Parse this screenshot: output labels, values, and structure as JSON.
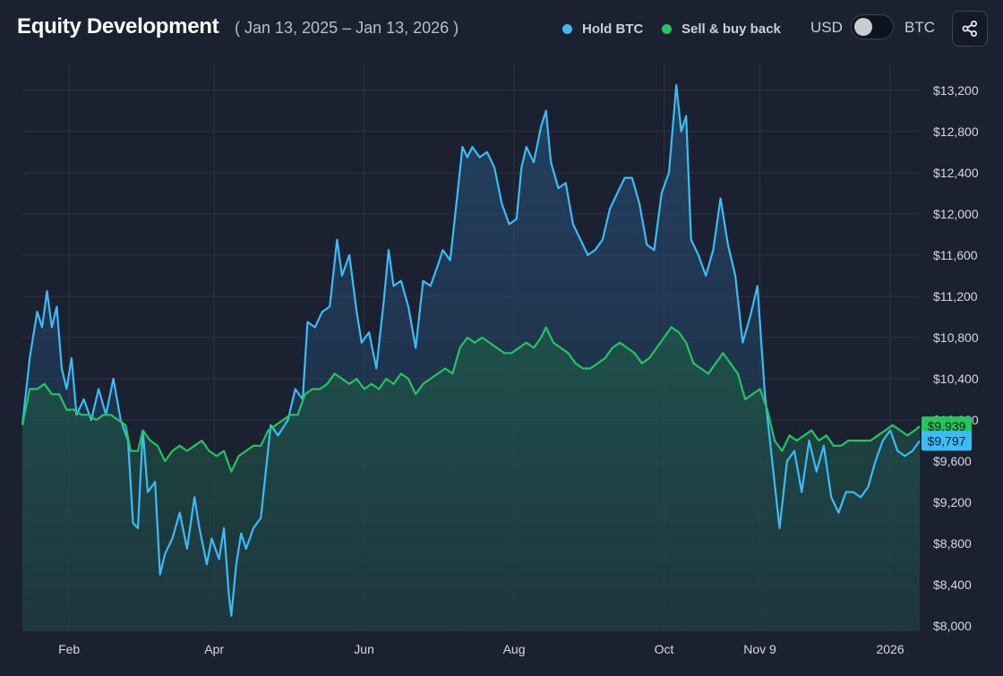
{
  "header": {
    "title": "Equity Development",
    "date_range": "( Jan 13, 2025 – Jan 13, 2026 )",
    "currency_left": "USD",
    "currency_right": "BTC"
  },
  "colors": {
    "hold": "#3bbcf5",
    "sell": "#22c55e",
    "background": "#1b2130",
    "grid": "#2b3344"
  },
  "icons": {
    "share": "share-icon"
  },
  "chart_data": {
    "type": "area",
    "title": "Equity Development",
    "x_range": [
      "2025-01-13",
      "2026-01-13"
    ],
    "ylim": [
      7950,
      13450
    ],
    "y_ticks": [
      8000,
      8400,
      8800,
      9200,
      9600,
      10000,
      10400,
      10800,
      11200,
      11600,
      12000,
      12400,
      12800,
      13200
    ],
    "y_tick_labels": [
      "$8,000",
      "$8,400",
      "$8,800",
      "$9,200",
      "$9,600",
      "$10,000",
      "$10,400",
      "$10,800",
      "$11,200",
      "$11,600",
      "$12,000",
      "$12,400",
      "$12,800",
      "$13,200"
    ],
    "x_ticks": [
      {
        "date": "2025-02-01",
        "label": "Feb"
      },
      {
        "date": "2025-04-01",
        "label": "Apr"
      },
      {
        "date": "2025-06-01",
        "label": "Jun"
      },
      {
        "date": "2025-08-01",
        "label": "Aug"
      },
      {
        "date": "2025-10-01",
        "label": "Oct"
      },
      {
        "date": "2025-11-09",
        "label": "Nov 9"
      },
      {
        "date": "2026-01-01",
        "label": "2026"
      }
    ],
    "grid": true,
    "legend": "top-right",
    "series": [
      {
        "name": "Hold BTC",
        "color": "#3bbcf5",
        "last_value_label": "$9,797",
        "points": [
          [
            "2025-01-13",
            9950
          ],
          [
            "2025-01-16",
            10600
          ],
          [
            "2025-01-19",
            11050
          ],
          [
            "2025-01-21",
            10900
          ],
          [
            "2025-01-23",
            11250
          ],
          [
            "2025-01-25",
            10900
          ],
          [
            "2025-01-27",
            11100
          ],
          [
            "2025-01-29",
            10500
          ],
          [
            "2025-01-31",
            10300
          ],
          [
            "2025-02-02",
            10600
          ],
          [
            "2025-02-04",
            10050
          ],
          [
            "2025-02-07",
            10200
          ],
          [
            "2025-02-10",
            10000
          ],
          [
            "2025-02-13",
            10300
          ],
          [
            "2025-02-16",
            10050
          ],
          [
            "2025-02-19",
            10400
          ],
          [
            "2025-02-22",
            10000
          ],
          [
            "2025-02-25",
            9800
          ],
          [
            "2025-02-27",
            9000
          ],
          [
            "2025-03-01",
            8950
          ],
          [
            "2025-03-03",
            9900
          ],
          [
            "2025-03-05",
            9300
          ],
          [
            "2025-03-08",
            9400
          ],
          [
            "2025-03-10",
            8500
          ],
          [
            "2025-03-12",
            8700
          ],
          [
            "2025-03-15",
            8850
          ],
          [
            "2025-03-18",
            9100
          ],
          [
            "2025-03-21",
            8750
          ],
          [
            "2025-03-24",
            9250
          ],
          [
            "2025-03-26",
            8950
          ],
          [
            "2025-03-29",
            8600
          ],
          [
            "2025-03-31",
            8850
          ],
          [
            "2025-04-03",
            8650
          ],
          [
            "2025-04-05",
            8950
          ],
          [
            "2025-04-07",
            8300
          ],
          [
            "2025-04-08",
            8100
          ],
          [
            "2025-04-10",
            8600
          ],
          [
            "2025-04-12",
            8900
          ],
          [
            "2025-04-14",
            8750
          ],
          [
            "2025-04-17",
            8950
          ],
          [
            "2025-04-20",
            9050
          ],
          [
            "2025-04-22",
            9500
          ],
          [
            "2025-04-24",
            9950
          ],
          [
            "2025-04-27",
            9850
          ],
          [
            "2025-05-01",
            10000
          ],
          [
            "2025-05-04",
            10300
          ],
          [
            "2025-05-07",
            10200
          ],
          [
            "2025-05-09",
            10950
          ],
          [
            "2025-05-12",
            10900
          ],
          [
            "2025-05-15",
            11050
          ],
          [
            "2025-05-18",
            11100
          ],
          [
            "2025-05-21",
            11750
          ],
          [
            "2025-05-23",
            11400
          ],
          [
            "2025-05-26",
            11600
          ],
          [
            "2025-05-29",
            11050
          ],
          [
            "2025-05-31",
            10750
          ],
          [
            "2025-06-03",
            10850
          ],
          [
            "2025-06-06",
            10500
          ],
          [
            "2025-06-09",
            11150
          ],
          [
            "2025-06-11",
            11650
          ],
          [
            "2025-06-13",
            11300
          ],
          [
            "2025-06-16",
            11350
          ],
          [
            "2025-06-19",
            11100
          ],
          [
            "2025-06-22",
            10700
          ],
          [
            "2025-06-25",
            11350
          ],
          [
            "2025-06-28",
            11300
          ],
          [
            "2025-07-01",
            11500
          ],
          [
            "2025-07-03",
            11650
          ],
          [
            "2025-07-06",
            11550
          ],
          [
            "2025-07-09",
            12200
          ],
          [
            "2025-07-11",
            12650
          ],
          [
            "2025-07-13",
            12550
          ],
          [
            "2025-07-15",
            12650
          ],
          [
            "2025-07-18",
            12550
          ],
          [
            "2025-07-21",
            12600
          ],
          [
            "2025-07-24",
            12450
          ],
          [
            "2025-07-27",
            12100
          ],
          [
            "2025-07-30",
            11900
          ],
          [
            "2025-08-02",
            11950
          ],
          [
            "2025-08-04",
            12450
          ],
          [
            "2025-08-06",
            12650
          ],
          [
            "2025-08-09",
            12500
          ],
          [
            "2025-08-12",
            12850
          ],
          [
            "2025-08-14",
            13000
          ],
          [
            "2025-08-16",
            12500
          ],
          [
            "2025-08-19",
            12250
          ],
          [
            "2025-08-22",
            12300
          ],
          [
            "2025-08-25",
            11900
          ],
          [
            "2025-08-28",
            11750
          ],
          [
            "2025-08-31",
            11600
          ],
          [
            "2025-09-03",
            11650
          ],
          [
            "2025-09-06",
            11750
          ],
          [
            "2025-09-09",
            12050
          ],
          [
            "2025-09-12",
            12200
          ],
          [
            "2025-09-15",
            12350
          ],
          [
            "2025-09-18",
            12350
          ],
          [
            "2025-09-21",
            12100
          ],
          [
            "2025-09-24",
            11700
          ],
          [
            "2025-09-27",
            11650
          ],
          [
            "2025-09-30",
            12200
          ],
          [
            "2025-10-03",
            12400
          ],
          [
            "2025-10-06",
            13250
          ],
          [
            "2025-10-08",
            12800
          ],
          [
            "2025-10-10",
            12950
          ],
          [
            "2025-10-12",
            11750
          ],
          [
            "2025-10-15",
            11600
          ],
          [
            "2025-10-18",
            11400
          ],
          [
            "2025-10-21",
            11650
          ],
          [
            "2025-10-24",
            12150
          ],
          [
            "2025-10-27",
            11700
          ],
          [
            "2025-10-30",
            11400
          ],
          [
            "2025-11-02",
            10750
          ],
          [
            "2025-11-05",
            11000
          ],
          [
            "2025-11-08",
            11300
          ],
          [
            "2025-11-11",
            10250
          ],
          [
            "2025-11-14",
            9600
          ],
          [
            "2025-11-17",
            8950
          ],
          [
            "2025-11-20",
            9600
          ],
          [
            "2025-11-23",
            9700
          ],
          [
            "2025-11-26",
            9300
          ],
          [
            "2025-11-29",
            9800
          ],
          [
            "2025-12-02",
            9500
          ],
          [
            "2025-12-05",
            9750
          ],
          [
            "2025-12-08",
            9250
          ],
          [
            "2025-12-11",
            9100
          ],
          [
            "2025-12-14",
            9300
          ],
          [
            "2025-12-17",
            9300
          ],
          [
            "2025-12-20",
            9250
          ],
          [
            "2025-12-23",
            9350
          ],
          [
            "2025-12-26",
            9600
          ],
          [
            "2025-12-29",
            9800
          ],
          [
            "2026-01-01",
            9900
          ],
          [
            "2026-01-04",
            9700
          ],
          [
            "2026-01-07",
            9650
          ],
          [
            "2026-01-10",
            9700
          ],
          [
            "2026-01-13",
            9797
          ]
        ]
      },
      {
        "name": "Sell & buy back",
        "color": "#22c55e",
        "last_value_label": "$9,939",
        "points": [
          [
            "2025-01-13",
            9950
          ],
          [
            "2025-01-16",
            10300
          ],
          [
            "2025-01-19",
            10300
          ],
          [
            "2025-01-22",
            10350
          ],
          [
            "2025-01-25",
            10250
          ],
          [
            "2025-01-28",
            10250
          ],
          [
            "2025-01-31",
            10100
          ],
          [
            "2025-02-03",
            10100
          ],
          [
            "2025-02-06",
            10050
          ],
          [
            "2025-02-09",
            10050
          ],
          [
            "2025-02-12",
            10000
          ],
          [
            "2025-02-15",
            10050
          ],
          [
            "2025-02-18",
            10050
          ],
          [
            "2025-02-21",
            10000
          ],
          [
            "2025-02-24",
            9950
          ],
          [
            "2025-02-26",
            9700
          ],
          [
            "2025-03-01",
            9700
          ],
          [
            "2025-03-03",
            9900
          ],
          [
            "2025-03-06",
            9800
          ],
          [
            "2025-03-09",
            9750
          ],
          [
            "2025-03-12",
            9600
          ],
          [
            "2025-03-15",
            9700
          ],
          [
            "2025-03-18",
            9750
          ],
          [
            "2025-03-21",
            9700
          ],
          [
            "2025-03-24",
            9750
          ],
          [
            "2025-03-27",
            9800
          ],
          [
            "2025-03-30",
            9700
          ],
          [
            "2025-04-02",
            9650
          ],
          [
            "2025-04-05",
            9700
          ],
          [
            "2025-04-08",
            9500
          ],
          [
            "2025-04-11",
            9650
          ],
          [
            "2025-04-14",
            9700
          ],
          [
            "2025-04-17",
            9750
          ],
          [
            "2025-04-20",
            9750
          ],
          [
            "2025-04-23",
            9900
          ],
          [
            "2025-04-26",
            9950
          ],
          [
            "2025-04-29",
            10000
          ],
          [
            "2025-05-02",
            10050
          ],
          [
            "2025-05-05",
            10050
          ],
          [
            "2025-05-08",
            10250
          ],
          [
            "2025-05-11",
            10300
          ],
          [
            "2025-05-14",
            10300
          ],
          [
            "2025-05-17",
            10350
          ],
          [
            "2025-05-20",
            10450
          ],
          [
            "2025-05-23",
            10400
          ],
          [
            "2025-05-26",
            10350
          ],
          [
            "2025-05-29",
            10400
          ],
          [
            "2025-06-01",
            10300
          ],
          [
            "2025-06-04",
            10350
          ],
          [
            "2025-06-07",
            10300
          ],
          [
            "2025-06-10",
            10400
          ],
          [
            "2025-06-13",
            10350
          ],
          [
            "2025-06-16",
            10450
          ],
          [
            "2025-06-19",
            10400
          ],
          [
            "2025-06-22",
            10250
          ],
          [
            "2025-06-25",
            10350
          ],
          [
            "2025-06-28",
            10400
          ],
          [
            "2025-07-01",
            10450
          ],
          [
            "2025-07-04",
            10500
          ],
          [
            "2025-07-07",
            10450
          ],
          [
            "2025-07-10",
            10700
          ],
          [
            "2025-07-13",
            10800
          ],
          [
            "2025-07-16",
            10750
          ],
          [
            "2025-07-19",
            10800
          ],
          [
            "2025-07-22",
            10750
          ],
          [
            "2025-07-25",
            10700
          ],
          [
            "2025-07-28",
            10650
          ],
          [
            "2025-07-31",
            10650
          ],
          [
            "2025-08-03",
            10700
          ],
          [
            "2025-08-06",
            10750
          ],
          [
            "2025-08-09",
            10700
          ],
          [
            "2025-08-12",
            10800
          ],
          [
            "2025-08-14",
            10900
          ],
          [
            "2025-08-17",
            10750
          ],
          [
            "2025-08-20",
            10700
          ],
          [
            "2025-08-23",
            10650
          ],
          [
            "2025-08-26",
            10550
          ],
          [
            "2025-08-29",
            10500
          ],
          [
            "2025-09-01",
            10500
          ],
          [
            "2025-09-04",
            10550
          ],
          [
            "2025-09-07",
            10600
          ],
          [
            "2025-09-10",
            10700
          ],
          [
            "2025-09-13",
            10750
          ],
          [
            "2025-09-16",
            10700
          ],
          [
            "2025-09-19",
            10650
          ],
          [
            "2025-09-22",
            10550
          ],
          [
            "2025-09-25",
            10600
          ],
          [
            "2025-09-28",
            10700
          ],
          [
            "2025-10-01",
            10800
          ],
          [
            "2025-10-04",
            10900
          ],
          [
            "2025-10-07",
            10850
          ],
          [
            "2025-10-10",
            10750
          ],
          [
            "2025-10-13",
            10550
          ],
          [
            "2025-10-16",
            10500
          ],
          [
            "2025-10-19",
            10450
          ],
          [
            "2025-10-22",
            10550
          ],
          [
            "2025-10-25",
            10650
          ],
          [
            "2025-10-28",
            10550
          ],
          [
            "2025-10-31",
            10450
          ],
          [
            "2025-11-03",
            10200
          ],
          [
            "2025-11-06",
            10250
          ],
          [
            "2025-11-09",
            10300
          ],
          [
            "2025-11-12",
            10100
          ],
          [
            "2025-11-15",
            9800
          ],
          [
            "2025-11-18",
            9700
          ],
          [
            "2025-11-21",
            9850
          ],
          [
            "2025-11-24",
            9800
          ],
          [
            "2025-11-27",
            9850
          ],
          [
            "2025-11-30",
            9900
          ],
          [
            "2025-12-03",
            9800
          ],
          [
            "2025-12-06",
            9850
          ],
          [
            "2025-12-09",
            9750
          ],
          [
            "2025-12-12",
            9750
          ],
          [
            "2025-12-15",
            9800
          ],
          [
            "2025-12-18",
            9800
          ],
          [
            "2025-12-21",
            9800
          ],
          [
            "2025-12-24",
            9800
          ],
          [
            "2025-12-27",
            9850
          ],
          [
            "2025-12-30",
            9900
          ],
          [
            "2026-01-02",
            9950
          ],
          [
            "2026-01-05",
            9900
          ],
          [
            "2026-01-08",
            9850
          ],
          [
            "2026-01-11",
            9900
          ],
          [
            "2026-01-13",
            9939
          ]
        ]
      }
    ]
  }
}
